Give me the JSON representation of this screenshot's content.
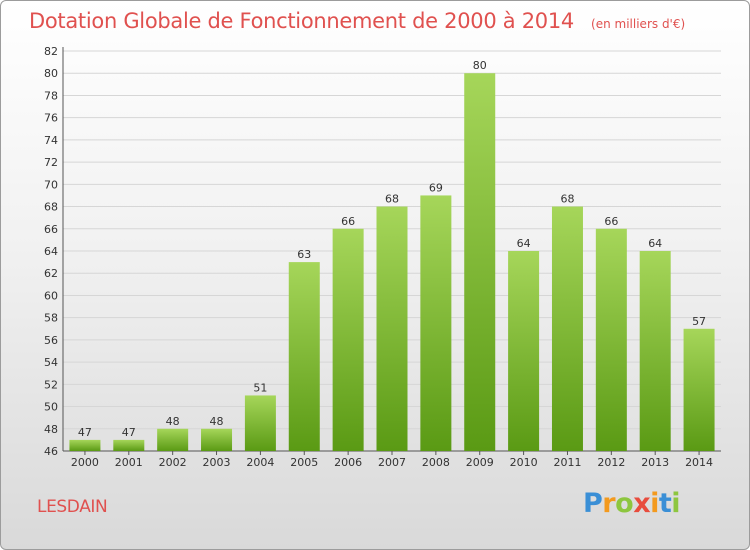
{
  "header": {
    "title": "Dotation Globale de Fonctionnement de 2000 à 2014",
    "unit": "(en milliers d'€)"
  },
  "footer": {
    "commune": "LESDAIN",
    "logo_letters": [
      "P",
      "r",
      "o",
      "x",
      "i",
      "t",
      "i"
    ]
  },
  "colors": {
    "title": "#e0514f",
    "bar_light": "#a6d65a",
    "bar_dark": "#5a9a14",
    "grid": "#d6d6d6",
    "axis": "#555555"
  },
  "chart_data": {
    "type": "bar",
    "title": "Dotation Globale de Fonctionnement de 2000 à 2014",
    "subtitle": "(en milliers d'€)",
    "categories": [
      "2000",
      "2001",
      "2002",
      "2003",
      "2004",
      "2005",
      "2006",
      "2007",
      "2008",
      "2009",
      "2010",
      "2011",
      "2012",
      "2013",
      "2014"
    ],
    "values": [
      47,
      47,
      48,
      48,
      51,
      63,
      66,
      68,
      69,
      80,
      64,
      68,
      66,
      64,
      57
    ],
    "ylim": [
      46,
      82
    ],
    "ytick_step": 2,
    "grid": true,
    "xlabel": "",
    "ylabel": ""
  }
}
